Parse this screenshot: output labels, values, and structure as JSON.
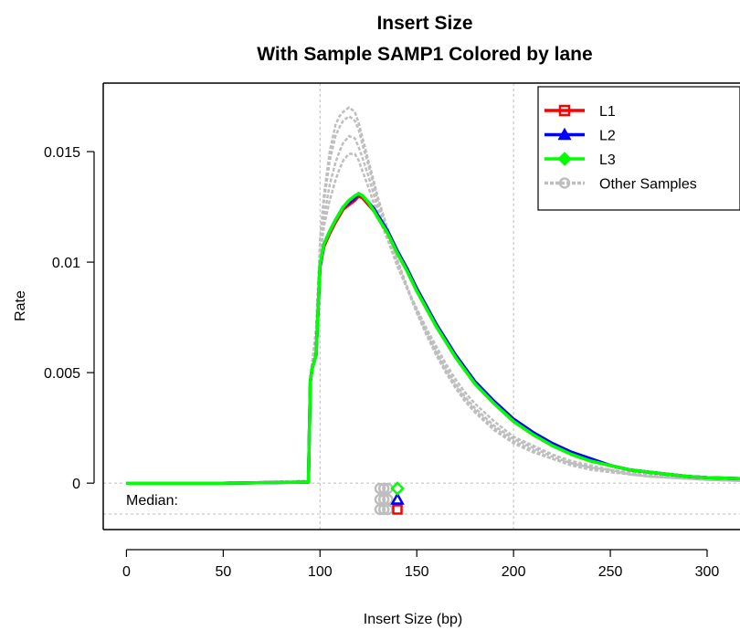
{
  "chart_data": {
    "type": "line",
    "title": "Insert Size",
    "subtitle": "With Sample SAMP1 Colored by lane",
    "xlabel": "Insert Size (bp)",
    "ylabel": "Rate",
    "xlim": [
      -12,
      317
    ],
    "ylim": [
      -0.0021,
      0.0181
    ],
    "x_ticks": [
      0,
      50,
      100,
      150,
      200,
      250,
      300
    ],
    "y_ticks": [
      0,
      0.005,
      0.01,
      0.015
    ],
    "y_tick_labels": [
      "0",
      "0.005",
      "0.01",
      "0.015"
    ],
    "grid": {
      "x": [
        100,
        200
      ],
      "y": [
        0
      ]
    },
    "median_label": "Median:",
    "legend": {
      "position": "top-right",
      "entries": [
        {
          "label": "L1",
          "color": "#ff0000",
          "marker": "square"
        },
        {
          "label": "L2",
          "color": "#0000ff",
          "marker": "triangle"
        },
        {
          "label": "L3",
          "color": "#00ff00",
          "marker": "diamond"
        },
        {
          "label": "Other Samples",
          "color": "#bebebe",
          "marker": "circle"
        }
      ]
    },
    "x": [
      0,
      50,
      94,
      95,
      96,
      98,
      100,
      102,
      105,
      108,
      110,
      112,
      115,
      118,
      120,
      122,
      125,
      128,
      130,
      135,
      140,
      145,
      150,
      155,
      160,
      165,
      170,
      175,
      180,
      190,
      200,
      210,
      220,
      230,
      240,
      250,
      260,
      270,
      280,
      290,
      300,
      317
    ],
    "series": [
      {
        "name": "L1",
        "color": "#ff0000",
        "values": [
          0,
          0,
          5e-05,
          0.0046,
          0.0052,
          0.0058,
          0.0098,
          0.0107,
          0.0113,
          0.0118,
          0.0121,
          0.0124,
          0.0126,
          0.0128,
          0.013,
          0.0129,
          0.0126,
          0.0123,
          0.012,
          0.0113,
          0.0104,
          0.0096,
          0.0087,
          0.0079,
          0.0071,
          0.0064,
          0.0057,
          0.0051,
          0.0045,
          0.0036,
          0.0028,
          0.0022,
          0.0017,
          0.0013,
          0.001,
          0.0008,
          0.0006,
          0.0005,
          0.0004,
          0.0003,
          0.00025,
          0.0002
        ]
      },
      {
        "name": "L2",
        "color": "#0000ff",
        "values": [
          0,
          0,
          5e-05,
          0.0046,
          0.0052,
          0.0058,
          0.0098,
          0.0108,
          0.0114,
          0.0119,
          0.0122,
          0.0125,
          0.0127,
          0.0129,
          0.0131,
          0.013,
          0.0127,
          0.0124,
          0.0121,
          0.0114,
          0.0105,
          0.0097,
          0.0088,
          0.008,
          0.0072,
          0.0065,
          0.0058,
          0.0052,
          0.0046,
          0.0037,
          0.0029,
          0.0023,
          0.0018,
          0.0014,
          0.0011,
          0.0008,
          0.0006,
          0.0005,
          0.0004,
          0.0003,
          0.00025,
          0.0002
        ]
      },
      {
        "name": "L3",
        "color": "#00ff00",
        "values": [
          0,
          0,
          5e-05,
          0.0046,
          0.0052,
          0.0058,
          0.0099,
          0.0108,
          0.0114,
          0.0119,
          0.0122,
          0.0125,
          0.0128,
          0.013,
          0.0131,
          0.013,
          0.0127,
          0.0123,
          0.012,
          0.0113,
          0.0104,
          0.0096,
          0.0087,
          0.0079,
          0.0071,
          0.0064,
          0.0057,
          0.0051,
          0.0045,
          0.0036,
          0.0028,
          0.0022,
          0.0017,
          0.0013,
          0.001,
          0.0008,
          0.0006,
          0.0005,
          0.0004,
          0.0003,
          0.00025,
          0.0002
        ]
      }
    ],
    "other_samples": {
      "label": "Other Samples",
      "color": "#bebebe",
      "curves": [
        [
          0,
          0,
          0.0001,
          0.0048,
          0.0055,
          0.007,
          0.011,
          0.013,
          0.015,
          0.0162,
          0.0166,
          0.0168,
          0.017,
          0.0168,
          0.0163,
          0.0156,
          0.0146,
          0.0136,
          0.0129,
          0.0115,
          0.0101,
          0.0089,
          0.0078,
          0.0068,
          0.0059,
          0.0051,
          0.0044,
          0.0038,
          0.0033,
          0.0025,
          0.0019,
          0.0015,
          0.0011,
          0.0009,
          0.0007,
          0.0005,
          0.0004,
          0.0003,
          0.00025,
          0.0002,
          0.00015,
          0.0001
        ],
        [
          0,
          0,
          0.0001,
          0.0048,
          0.0055,
          0.0068,
          0.0108,
          0.0127,
          0.0146,
          0.0157,
          0.0161,
          0.0164,
          0.0166,
          0.0164,
          0.016,
          0.0153,
          0.0144,
          0.0134,
          0.0127,
          0.0114,
          0.01,
          0.0088,
          0.0077,
          0.0067,
          0.0058,
          0.005,
          0.0043,
          0.0037,
          0.0032,
          0.0024,
          0.0018,
          0.0014,
          0.0011,
          0.0008,
          0.0006,
          0.0005,
          0.0004,
          0.0003,
          0.00025,
          0.0002,
          0.00015,
          0.0001
        ],
        [
          0,
          0,
          0.0001,
          0.0047,
          0.0053,
          0.0064,
          0.0104,
          0.012,
          0.0135,
          0.0145,
          0.015,
          0.0154,
          0.0157,
          0.0156,
          0.0152,
          0.0147,
          0.0139,
          0.013,
          0.0124,
          0.0112,
          0.0099,
          0.0088,
          0.0078,
          0.0069,
          0.006,
          0.0052,
          0.0045,
          0.0039,
          0.0034,
          0.0026,
          0.002,
          0.0016,
          0.0012,
          0.0009,
          0.0007,
          0.0006,
          0.0004,
          0.0003,
          0.00025,
          0.0002,
          0.00015,
          0.0001
        ],
        [
          0,
          0,
          0.0001,
          0.0047,
          0.0053,
          0.0062,
          0.0102,
          0.0116,
          0.0128,
          0.0137,
          0.0142,
          0.0146,
          0.0149,
          0.0149,
          0.0146,
          0.0141,
          0.0134,
          0.0126,
          0.0121,
          0.011,
          0.0098,
          0.0088,
          0.0079,
          0.007,
          0.0062,
          0.0054,
          0.0047,
          0.0041,
          0.0036,
          0.0028,
          0.0021,
          0.0017,
          0.0013,
          0.001,
          0.0008,
          0.0006,
          0.0005,
          0.0004,
          0.0003,
          0.00025,
          0.0002,
          0.00015
        ]
      ]
    },
    "medians": {
      "L1": 140,
      "L2": 140,
      "L3": 140,
      "other_samples": [
        131,
        133,
        135
      ]
    }
  }
}
